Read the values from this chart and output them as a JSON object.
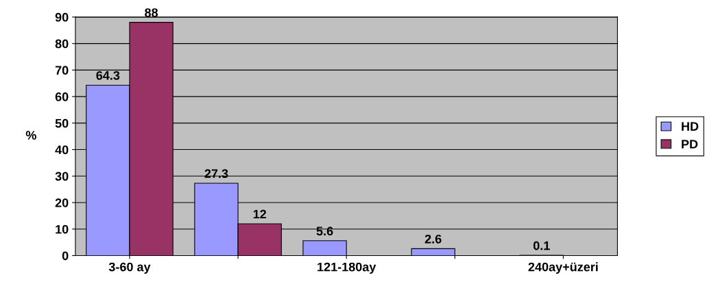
{
  "chart_data": {
    "type": "bar",
    "ylabel": "%",
    "categories": [
      "3-60 ay",
      null,
      "121-180ay",
      null,
      "240ay+üzeri"
    ],
    "series": [
      {
        "name": "HD",
        "color": "#9999ff",
        "values": [
          64.3,
          27.3,
          5.6,
          2.6,
          0.1
        ]
      },
      {
        "name": "PD",
        "color": "#993366",
        "values": [
          88,
          12,
          null,
          null,
          null
        ]
      }
    ],
    "ylim": [
      0,
      90
    ],
    "yticks": [
      0,
      10,
      20,
      30,
      40,
      50,
      60,
      70,
      80,
      90
    ],
    "grid": "y",
    "legend": "right",
    "data_labels": true
  }
}
